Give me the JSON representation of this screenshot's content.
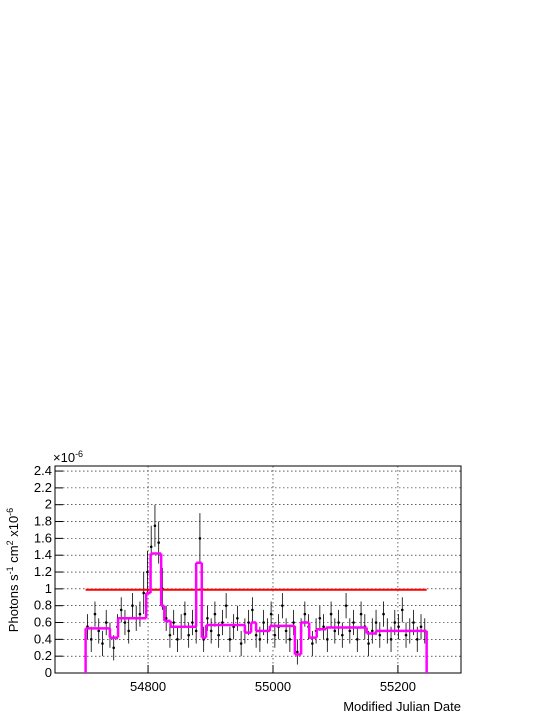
{
  "chart_data": {
    "type": "scatter",
    "xlabel": "Modified Julian Date",
    "ylabel_parts": [
      "Photons s",
      "-1",
      " cm",
      "2",
      " x10",
      "-6"
    ],
    "yexponent_parts": [
      "×10",
      "-6"
    ],
    "xlim": [
      54651,
      55301
    ],
    "ylim": [
      0,
      2.46
    ],
    "xticks": [
      54800,
      55000,
      55200
    ],
    "yticks": [
      0,
      0.2,
      0.4,
      0.6,
      0.8,
      1,
      1.2,
      1.4,
      1.6,
      1.8,
      2,
      2.2,
      2.4
    ],
    "grid": true,
    "points": {
      "color": "#000000",
      "x": [
        54703,
        54709,
        54715,
        54721,
        54727,
        54733,
        54739,
        54745,
        54751,
        54757,
        54763,
        54769,
        54775,
        54781,
        54787,
        54793,
        54799,
        54805,
        54811,
        54817,
        54823,
        54829,
        54835,
        54841,
        54847,
        54853,
        54859,
        54865,
        54871,
        54877,
        54883,
        54889,
        54895,
        54901,
        54907,
        54913,
        54919,
        54925,
        54931,
        54937,
        54943,
        54949,
        54955,
        54961,
        54967,
        54973,
        54979,
        54985,
        54991,
        54997,
        55003,
        55009,
        55015,
        55021,
        55027,
        55033,
        55039,
        55045,
        55051,
        55057,
        55063,
        55069,
        55075,
        55081,
        55087,
        55093,
        55099,
        55105,
        55111,
        55117,
        55123,
        55129,
        55135,
        55141,
        55147,
        55153,
        55159,
        55165,
        55171,
        55177,
        55183,
        55189,
        55195,
        55201,
        55207,
        55213,
        55219,
        55225,
        55231,
        55237,
        55243
      ],
      "values": [
        0.55,
        0.4,
        0.7,
        0.5,
        0.35,
        0.6,
        0.45,
        0.3,
        0.55,
        0.75,
        0.6,
        0.5,
        0.8,
        0.65,
        0.7,
        0.95,
        1.2,
        1.5,
        1.75,
        1.55,
        1.0,
        0.65,
        0.45,
        0.6,
        0.4,
        0.55,
        0.7,
        0.45,
        0.6,
        0.5,
        1.6,
        0.4,
        0.65,
        0.5,
        0.7,
        0.45,
        0.6,
        0.8,
        0.4,
        0.55,
        0.65,
        0.35,
        0.5,
        0.6,
        0.75,
        0.45,
        0.4,
        0.6,
        0.5,
        0.7,
        0.45,
        0.55,
        0.8,
        0.5,
        0.4,
        0.6,
        0.25,
        0.5,
        0.7,
        0.55,
        0.35,
        0.5,
        0.65,
        0.55,
        0.4,
        0.7,
        0.5,
        0.6,
        0.45,
        0.8,
        0.5,
        0.6,
        0.4,
        0.7,
        0.55,
        0.35,
        0.5,
        0.6,
        0.45,
        0.7,
        0.5,
        0.4,
        0.6,
        0.55,
        0.75,
        0.45,
        0.5,
        0.6,
        0.4,
        0.55,
        0.5
      ],
      "errors": [
        0.15,
        0.15,
        0.15,
        0.15,
        0.15,
        0.15,
        0.15,
        0.15,
        0.15,
        0.15,
        0.15,
        0.15,
        0.15,
        0.15,
        0.15,
        0.25,
        0.25,
        0.25,
        0.25,
        0.25,
        0.25,
        0.15,
        0.15,
        0.15,
        0.15,
        0.15,
        0.15,
        0.15,
        0.15,
        0.15,
        0.3,
        0.15,
        0.15,
        0.15,
        0.15,
        0.15,
        0.15,
        0.15,
        0.15,
        0.15,
        0.15,
        0.15,
        0.15,
        0.15,
        0.15,
        0.15,
        0.15,
        0.15,
        0.15,
        0.15,
        0.15,
        0.15,
        0.15,
        0.15,
        0.15,
        0.15,
        0.15,
        0.15,
        0.15,
        0.15,
        0.15,
        0.15,
        0.15,
        0.15,
        0.15,
        0.15,
        0.15,
        0.15,
        0.15,
        0.15,
        0.15,
        0.15,
        0.15,
        0.15,
        0.15,
        0.15,
        0.15,
        0.15,
        0.15,
        0.15,
        0.15,
        0.15,
        0.15,
        0.15,
        0.15,
        0.15,
        0.15,
        0.15,
        0.15,
        0.15,
        0.15
      ]
    },
    "blocks": {
      "color": "#ff00ff",
      "edges": [
        54700,
        54739,
        54752,
        54797,
        54804,
        54821,
        54826,
        54836,
        54877,
        54886,
        54893,
        54955,
        54965,
        54973,
        54995,
        55035,
        55045,
        55058,
        55070,
        55085,
        55150,
        55165,
        55246
      ],
      "values": [
        0.53,
        0.42,
        0.65,
        0.95,
        1.42,
        0.8,
        0.62,
        0.55,
        1.31,
        0.42,
        0.57,
        0.48,
        0.6,
        0.5,
        0.56,
        0.22,
        0.6,
        0.42,
        0.52,
        0.54,
        0.47,
        0.5
      ]
    },
    "average": {
      "color": "#ff0000",
      "x": [
        54700,
        55246
      ],
      "values": [
        0.99,
        0.99
      ]
    }
  }
}
